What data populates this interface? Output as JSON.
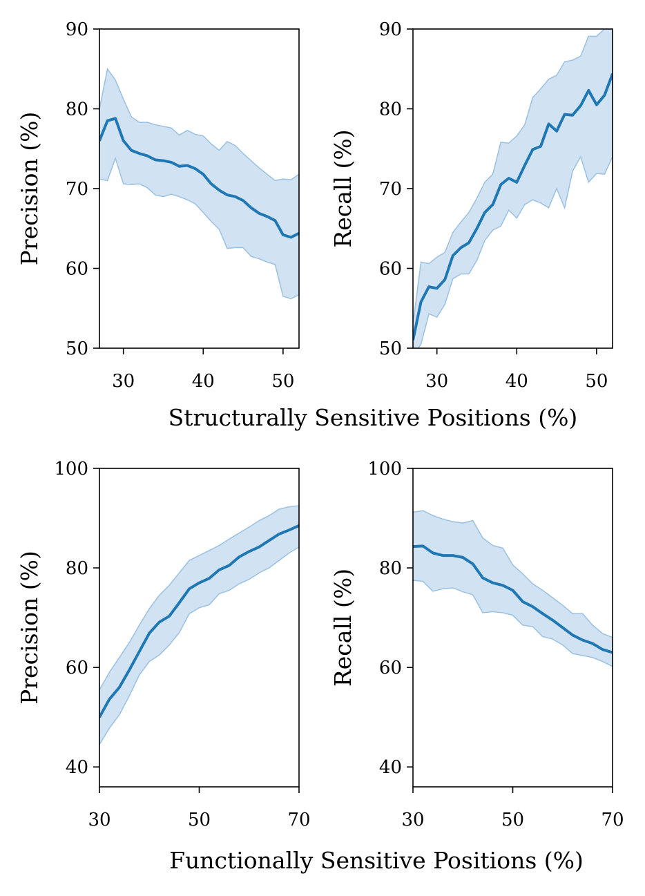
{
  "colors": {
    "line": "#1f77b4",
    "band": "#b3d1ea",
    "band_edge": "#9ec3e2"
  },
  "figure": {
    "row1_xlabel": "Structurally Sensitive Positions (%)",
    "row2_xlabel": "Functionally Sensitive Positions (%)"
  },
  "chart_data": [
    {
      "type": "line",
      "ylabel": "Precision (%)",
      "xlim": [
        27,
        52
      ],
      "ylim": [
        50,
        90
      ],
      "xticks": [
        30,
        40,
        50
      ],
      "yticks": [
        50,
        60,
        70,
        80,
        90
      ],
      "x": [
        27,
        28,
        29,
        30,
        31,
        32,
        33,
        34,
        35,
        36,
        37,
        38,
        39,
        40,
        41,
        42,
        43,
        44,
        45,
        46,
        47,
        48,
        49,
        50,
        51,
        52
      ],
      "y": [
        76.0,
        78.5,
        78.8,
        76.0,
        74.8,
        74.4,
        74.1,
        73.6,
        73.5,
        73.3,
        72.8,
        72.9,
        72.5,
        71.8,
        70.6,
        69.8,
        69.2,
        69.0,
        68.5,
        67.6,
        66.9,
        66.5,
        66.0,
        64.2,
        63.9,
        64.4
      ],
      "y_lower": [
        71.2,
        71.0,
        73.8,
        70.6,
        70.5,
        70.6,
        70.1,
        69.2,
        69.0,
        69.3,
        69.0,
        68.6,
        68.1,
        67.0,
        65.9,
        64.9,
        62.5,
        62.6,
        62.6,
        61.5,
        61.2,
        60.8,
        60.5,
        56.5,
        56.2,
        56.7
      ],
      "y_upper": [
        80.0,
        85.0,
        83.6,
        81.2,
        79.0,
        78.3,
        78.3,
        78.0,
        77.8,
        77.6,
        76.7,
        77.3,
        76.8,
        76.6,
        75.6,
        74.8,
        75.9,
        75.4,
        74.4,
        73.5,
        72.6,
        71.8,
        71.0,
        71.2,
        71.1,
        71.8
      ]
    },
    {
      "type": "line",
      "ylabel": "Recall (%)",
      "xlim": [
        27,
        52
      ],
      "ylim": [
        50,
        90
      ],
      "xticks": [
        30,
        40,
        50
      ],
      "yticks": [
        50,
        60,
        70,
        80,
        90
      ],
      "x": [
        27,
        28,
        29,
        30,
        31,
        32,
        33,
        34,
        35,
        36,
        37,
        38,
        39,
        40,
        41,
        42,
        43,
        44,
        45,
        46,
        47,
        48,
        49,
        50,
        51,
        52
      ],
      "y": [
        51.0,
        55.8,
        57.7,
        57.5,
        58.6,
        61.6,
        62.6,
        63.2,
        65.0,
        67.0,
        68.0,
        70.5,
        71.3,
        70.8,
        72.9,
        74.9,
        75.3,
        78.1,
        77.2,
        79.3,
        79.2,
        80.4,
        82.3,
        80.5,
        81.7,
        84.4
      ],
      "y_lower": [
        49.0,
        50.5,
        54.3,
        53.9,
        55.5,
        58.7,
        59.3,
        59.3,
        61.0,
        63.5,
        64.8,
        65.3,
        67.3,
        66.3,
        68.0,
        68.6,
        68.2,
        67.6,
        70.0,
        67.6,
        72.2,
        74.0,
        70.8,
        71.9,
        71.8,
        74.0
      ],
      "y_upper": [
        53.0,
        60.8,
        60.6,
        61.4,
        62.0,
        64.5,
        65.8,
        67.0,
        68.8,
        70.8,
        71.8,
        75.8,
        75.7,
        76.6,
        78.0,
        81.4,
        82.5,
        83.7,
        84.2,
        85.9,
        86.1,
        86.6,
        89.1,
        89.1,
        90.0,
        90.5
      ]
    },
    {
      "type": "line",
      "ylabel": "Precision (%)",
      "xlim": [
        30,
        70
      ],
      "ylim": [
        36,
        100
      ],
      "xticks": [
        30,
        50,
        70
      ],
      "yticks": [
        40,
        60,
        80,
        100
      ],
      "x": [
        30,
        32,
        34,
        36,
        38,
        40,
        42,
        44,
        46,
        48,
        50,
        52,
        54,
        56,
        58,
        60,
        62,
        64,
        66,
        68,
        70
      ],
      "y": [
        50.0,
        53.6,
        56.0,
        59.5,
        63.2,
        66.9,
        69.1,
        70.3,
        73.0,
        75.8,
        77.0,
        77.9,
        79.6,
        80.5,
        82.2,
        83.3,
        84.2,
        85.5,
        86.8,
        87.6,
        88.5
      ],
      "y_lower": [
        44.5,
        47.8,
        50.5,
        54.3,
        58.5,
        61.2,
        62.5,
        64.5,
        67.0,
        70.8,
        72.0,
        72.6,
        74.8,
        75.5,
        76.8,
        77.7,
        79.0,
        80.0,
        81.5,
        83.0,
        84.2
      ],
      "y_upper": [
        55.5,
        59.0,
        62.0,
        65.0,
        68.5,
        71.8,
        74.5,
        76.5,
        79.0,
        81.5,
        82.5,
        83.5,
        84.5,
        85.8,
        87.0,
        88.2,
        89.5,
        90.5,
        91.8,
        92.3,
        92.5
      ]
    },
    {
      "type": "line",
      "ylabel": "Recall (%)",
      "xlim": [
        30,
        70
      ],
      "ylim": [
        36,
        100
      ],
      "xticks": [
        30,
        50,
        70
      ],
      "yticks": [
        40,
        60,
        80,
        100
      ],
      "x": [
        30,
        32,
        34,
        36,
        38,
        40,
        42,
        44,
        46,
        48,
        50,
        52,
        54,
        56,
        58,
        60,
        62,
        64,
        66,
        68,
        70
      ],
      "y": [
        84.3,
        84.4,
        83.0,
        82.5,
        82.5,
        82.1,
        80.8,
        78.0,
        77.0,
        76.5,
        75.5,
        73.2,
        72.2,
        70.8,
        69.5,
        68.0,
        66.5,
        65.5,
        64.8,
        63.6,
        63.0
      ],
      "y_lower": [
        77.5,
        77.3,
        75.3,
        75.8,
        76.0,
        75.2,
        74.6,
        71.0,
        71.2,
        71.0,
        70.5,
        68.5,
        68.2,
        66.2,
        65.7,
        64.5,
        62.8,
        62.4,
        62.0,
        61.2,
        60.2
      ],
      "y_upper": [
        91.2,
        91.5,
        90.5,
        89.8,
        89.3,
        89.0,
        89.5,
        86.0,
        84.5,
        84.0,
        80.6,
        78.8,
        76.8,
        75.5,
        74.0,
        72.5,
        70.8,
        70.8,
        68.5,
        66.8,
        66.0
      ]
    }
  ]
}
